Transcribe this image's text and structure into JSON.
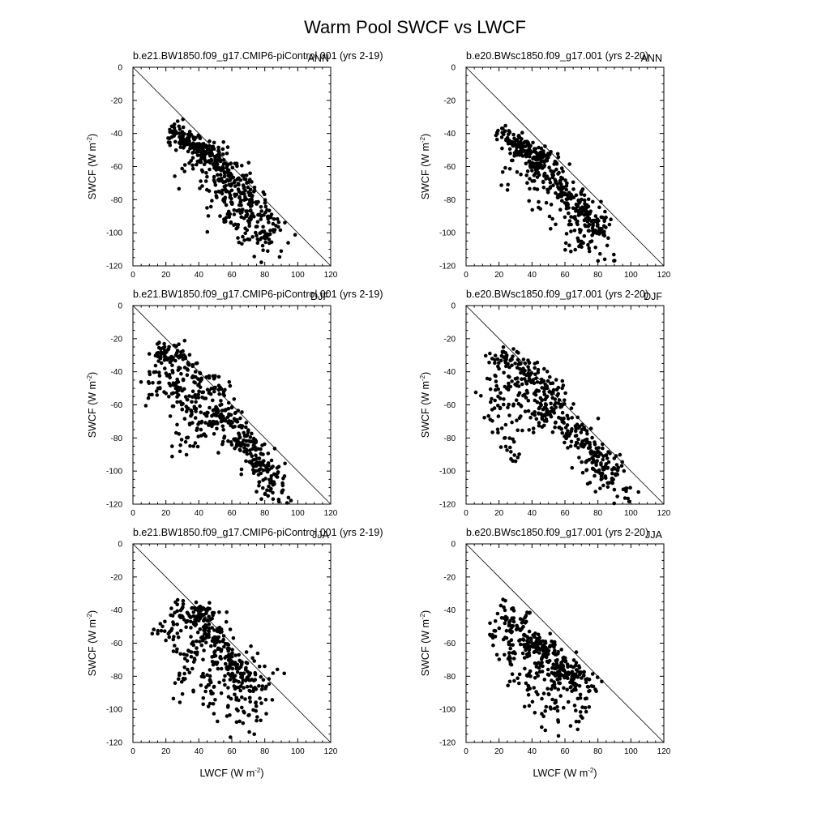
{
  "figure": {
    "title": "Warm Pool SWCF vs LWCF"
  },
  "chart_data": [
    {
      "type": "scatter",
      "title": "b.e21.BW1850.f09_g17.CMIP6-piControl.001 (yrs 2-19)",
      "season": "ANN",
      "xlabel_main": "LWCF (W m",
      "xlabel_sup": "-2",
      "xlabel_end": ")",
      "ylabel_main": "SWCF (W m",
      "ylabel_sup": "-2",
      "ylabel_end": ")",
      "xlim": [
        0,
        120
      ],
      "ylim": [
        -120,
        0
      ],
      "xticks": [
        0,
        20,
        40,
        60,
        80,
        100,
        120
      ],
      "yticks": [
        0,
        -20,
        -40,
        -60,
        -80,
        -100,
        -120
      ],
      "reference_line": "y = -x",
      "clusters": [
        {
          "from": [
            22,
            -38
          ],
          "to": [
            52,
            -56
          ],
          "n": 110,
          "width": 3
        },
        {
          "from": [
            30,
            -42
          ],
          "to": [
            45,
            -50
          ],
          "n": 40,
          "width": 3
        },
        {
          "from": [
            45,
            -50
          ],
          "to": [
            85,
            -100
          ],
          "n": 230,
          "width": 5
        },
        {
          "from": [
            35,
            -55
          ],
          "to": [
            80,
            -105
          ],
          "n": 80,
          "width": 8
        },
        {
          "from": [
            55,
            -75
          ],
          "to": [
            90,
            -118
          ],
          "n": 50,
          "width": 7
        }
      ]
    },
    {
      "type": "scatter",
      "title": "b.e20.BWsc1850.f09_g17.001 (yrs 2-20)",
      "season": "ANN",
      "xlabel_main": "LWCF (W m",
      "xlabel_sup": "-2",
      "xlabel_end": ")",
      "ylabel_main": "SWCF (W m",
      "ylabel_sup": "-2",
      "ylabel_end": ")",
      "xlim": [
        0,
        120
      ],
      "ylim": [
        -120,
        0
      ],
      "xticks": [
        0,
        20,
        40,
        60,
        80,
        100,
        120
      ],
      "yticks": [
        0,
        -20,
        -40,
        -60,
        -80,
        -100,
        -120
      ],
      "reference_line": "y = -x",
      "clusters": [
        {
          "from": [
            20,
            -37
          ],
          "to": [
            45,
            -60
          ],
          "n": 90,
          "width": 3
        },
        {
          "from": [
            25,
            -42
          ],
          "to": [
            50,
            -55
          ],
          "n": 50,
          "width": 3
        },
        {
          "from": [
            40,
            -55
          ],
          "to": [
            85,
            -100
          ],
          "n": 200,
          "width": 5
        },
        {
          "from": [
            30,
            -52
          ],
          "to": [
            75,
            -108
          ],
          "n": 70,
          "width": 8
        },
        {
          "from": [
            60,
            -80
          ],
          "to": [
            88,
            -120
          ],
          "n": 45,
          "width": 6
        }
      ]
    },
    {
      "type": "scatter",
      "title": "b.e21.BW1850.f09_g17.CMIP6-piControl.001 (yrs 2-19)",
      "season": "DJF",
      "xlabel_main": "LWCF (W m",
      "xlabel_sup": "-2",
      "xlabel_end": ")",
      "ylabel_main": "SWCF (W m",
      "ylabel_sup": "-2",
      "ylabel_end": ")",
      "xlim": [
        0,
        120
      ],
      "ylim": [
        -120,
        0
      ],
      "xticks": [
        0,
        20,
        40,
        60,
        80,
        100,
        120
      ],
      "yticks": [
        0,
        -20,
        -40,
        -60,
        -80,
        -100,
        -120
      ],
      "reference_line": "y = -x",
      "clusters": [
        {
          "from": [
            12,
            -32
          ],
          "to": [
            20,
            -24
          ],
          "n": 25,
          "width": 3
        },
        {
          "from": [
            20,
            -24
          ],
          "to": [
            55,
            -55
          ],
          "n": 90,
          "width": 4
        },
        {
          "from": [
            12,
            -35
          ],
          "to": [
            50,
            -72
          ],
          "n": 120,
          "width": 7
        },
        {
          "from": [
            18,
            -45
          ],
          "to": [
            35,
            -90
          ],
          "n": 40,
          "width": 6
        },
        {
          "from": [
            50,
            -60
          ],
          "to": [
            88,
            -108
          ],
          "n": 220,
          "width": 5
        },
        {
          "from": [
            80,
            -105
          ],
          "to": [
            95,
            -120
          ],
          "n": 25,
          "width": 4
        }
      ]
    },
    {
      "type": "scatter",
      "title": "b.e20.BWsc1850.f09_g17.001 (yrs 2-20)",
      "season": "DJF",
      "xlabel_main": "LWCF (W m",
      "xlabel_sup": "-2",
      "xlabel_end": ")",
      "ylabel_main": "SWCF (W m",
      "ylabel_sup": "-2",
      "ylabel_end": ")",
      "xlim": [
        0,
        120
      ],
      "ylim": [
        -120,
        0
      ],
      "xticks": [
        0,
        20,
        40,
        60,
        80,
        100,
        120
      ],
      "yticks": [
        0,
        -20,
        -40,
        -60,
        -80,
        -100,
        -120
      ],
      "reference_line": "y = -x",
      "clusters": [
        {
          "from": [
            14,
            -35
          ],
          "to": [
            25,
            -30
          ],
          "n": 25,
          "width": 3
        },
        {
          "from": [
            25,
            -30
          ],
          "to": [
            55,
            -55
          ],
          "n": 80,
          "width": 4
        },
        {
          "from": [
            15,
            -40
          ],
          "to": [
            50,
            -70
          ],
          "n": 110,
          "width": 7
        },
        {
          "from": [
            18,
            -60
          ],
          "to": [
            30,
            -95
          ],
          "n": 35,
          "width": 5
        },
        {
          "from": [
            50,
            -58
          ],
          "to": [
            90,
            -105
          ],
          "n": 200,
          "width": 5
        },
        {
          "from": [
            80,
            -100
          ],
          "to": [
            100,
            -118
          ],
          "n": 30,
          "width": 4
        }
      ]
    },
    {
      "type": "scatter",
      "title": "b.e21.BW1850.f09_g17.CMIP6-piControl.001 (yrs 2-19)",
      "season": "JJA",
      "xlabel_main": "LWCF (W m",
      "xlabel_sup": "-2",
      "xlabel_end": ")",
      "ylabel_main": "SWCF (W m",
      "ylabel_sup": "-2",
      "ylabel_end": ")",
      "xlim": [
        0,
        120
      ],
      "ylim": [
        -120,
        0
      ],
      "xticks": [
        0,
        20,
        40,
        60,
        80,
        100,
        120
      ],
      "yticks": [
        0,
        -20,
        -40,
        -60,
        -80,
        -100,
        -120
      ],
      "reference_line": "y = -x",
      "clusters": [
        {
          "from": [
            25,
            -36
          ],
          "to": [
            40,
            -45
          ],
          "n": 40,
          "width": 4
        },
        {
          "from": [
            40,
            -38
          ],
          "to": [
            68,
            -85
          ],
          "n": 170,
          "width": 4
        },
        {
          "from": [
            20,
            -45
          ],
          "to": [
            40,
            -70
          ],
          "n": 60,
          "width": 7
        },
        {
          "from": [
            30,
            -75
          ],
          "to": [
            80,
            -105
          ],
          "n": 120,
          "width": 11
        },
        {
          "from": [
            55,
            -70
          ],
          "to": [
            85,
            -90
          ],
          "n": 60,
          "width": 6
        }
      ]
    },
    {
      "type": "scatter",
      "title": "b.e20.BWsc1850.f09_g17.001 (yrs 2-20)",
      "season": "JJA",
      "xlabel_main": "LWCF (W m",
      "xlabel_sup": "-2",
      "xlabel_end": ")",
      "ylabel_main": "SWCF (W m",
      "ylabel_sup": "-2",
      "ylabel_end": ")",
      "xlim": [
        0,
        120
      ],
      "ylim": [
        -120,
        0
      ],
      "xticks": [
        0,
        20,
        40,
        60,
        80,
        100,
        120
      ],
      "yticks": [
        0,
        -20,
        -40,
        -60,
        -80,
        -100,
        -120
      ],
      "reference_line": "y = -x",
      "clusters": [
        {
          "from": [
            18,
            -40
          ],
          "to": [
            35,
            -50
          ],
          "n": 45,
          "width": 5
        },
        {
          "from": [
            35,
            -55
          ],
          "to": [
            68,
            -82
          ],
          "n": 170,
          "width": 4
        },
        {
          "from": [
            20,
            -50
          ],
          "to": [
            35,
            -70
          ],
          "n": 50,
          "width": 6
        },
        {
          "from": [
            30,
            -75
          ],
          "to": [
            75,
            -105
          ],
          "n": 100,
          "width": 10
        },
        {
          "from": [
            55,
            -75
          ],
          "to": [
            82,
            -90
          ],
          "n": 50,
          "width": 5
        }
      ]
    }
  ]
}
